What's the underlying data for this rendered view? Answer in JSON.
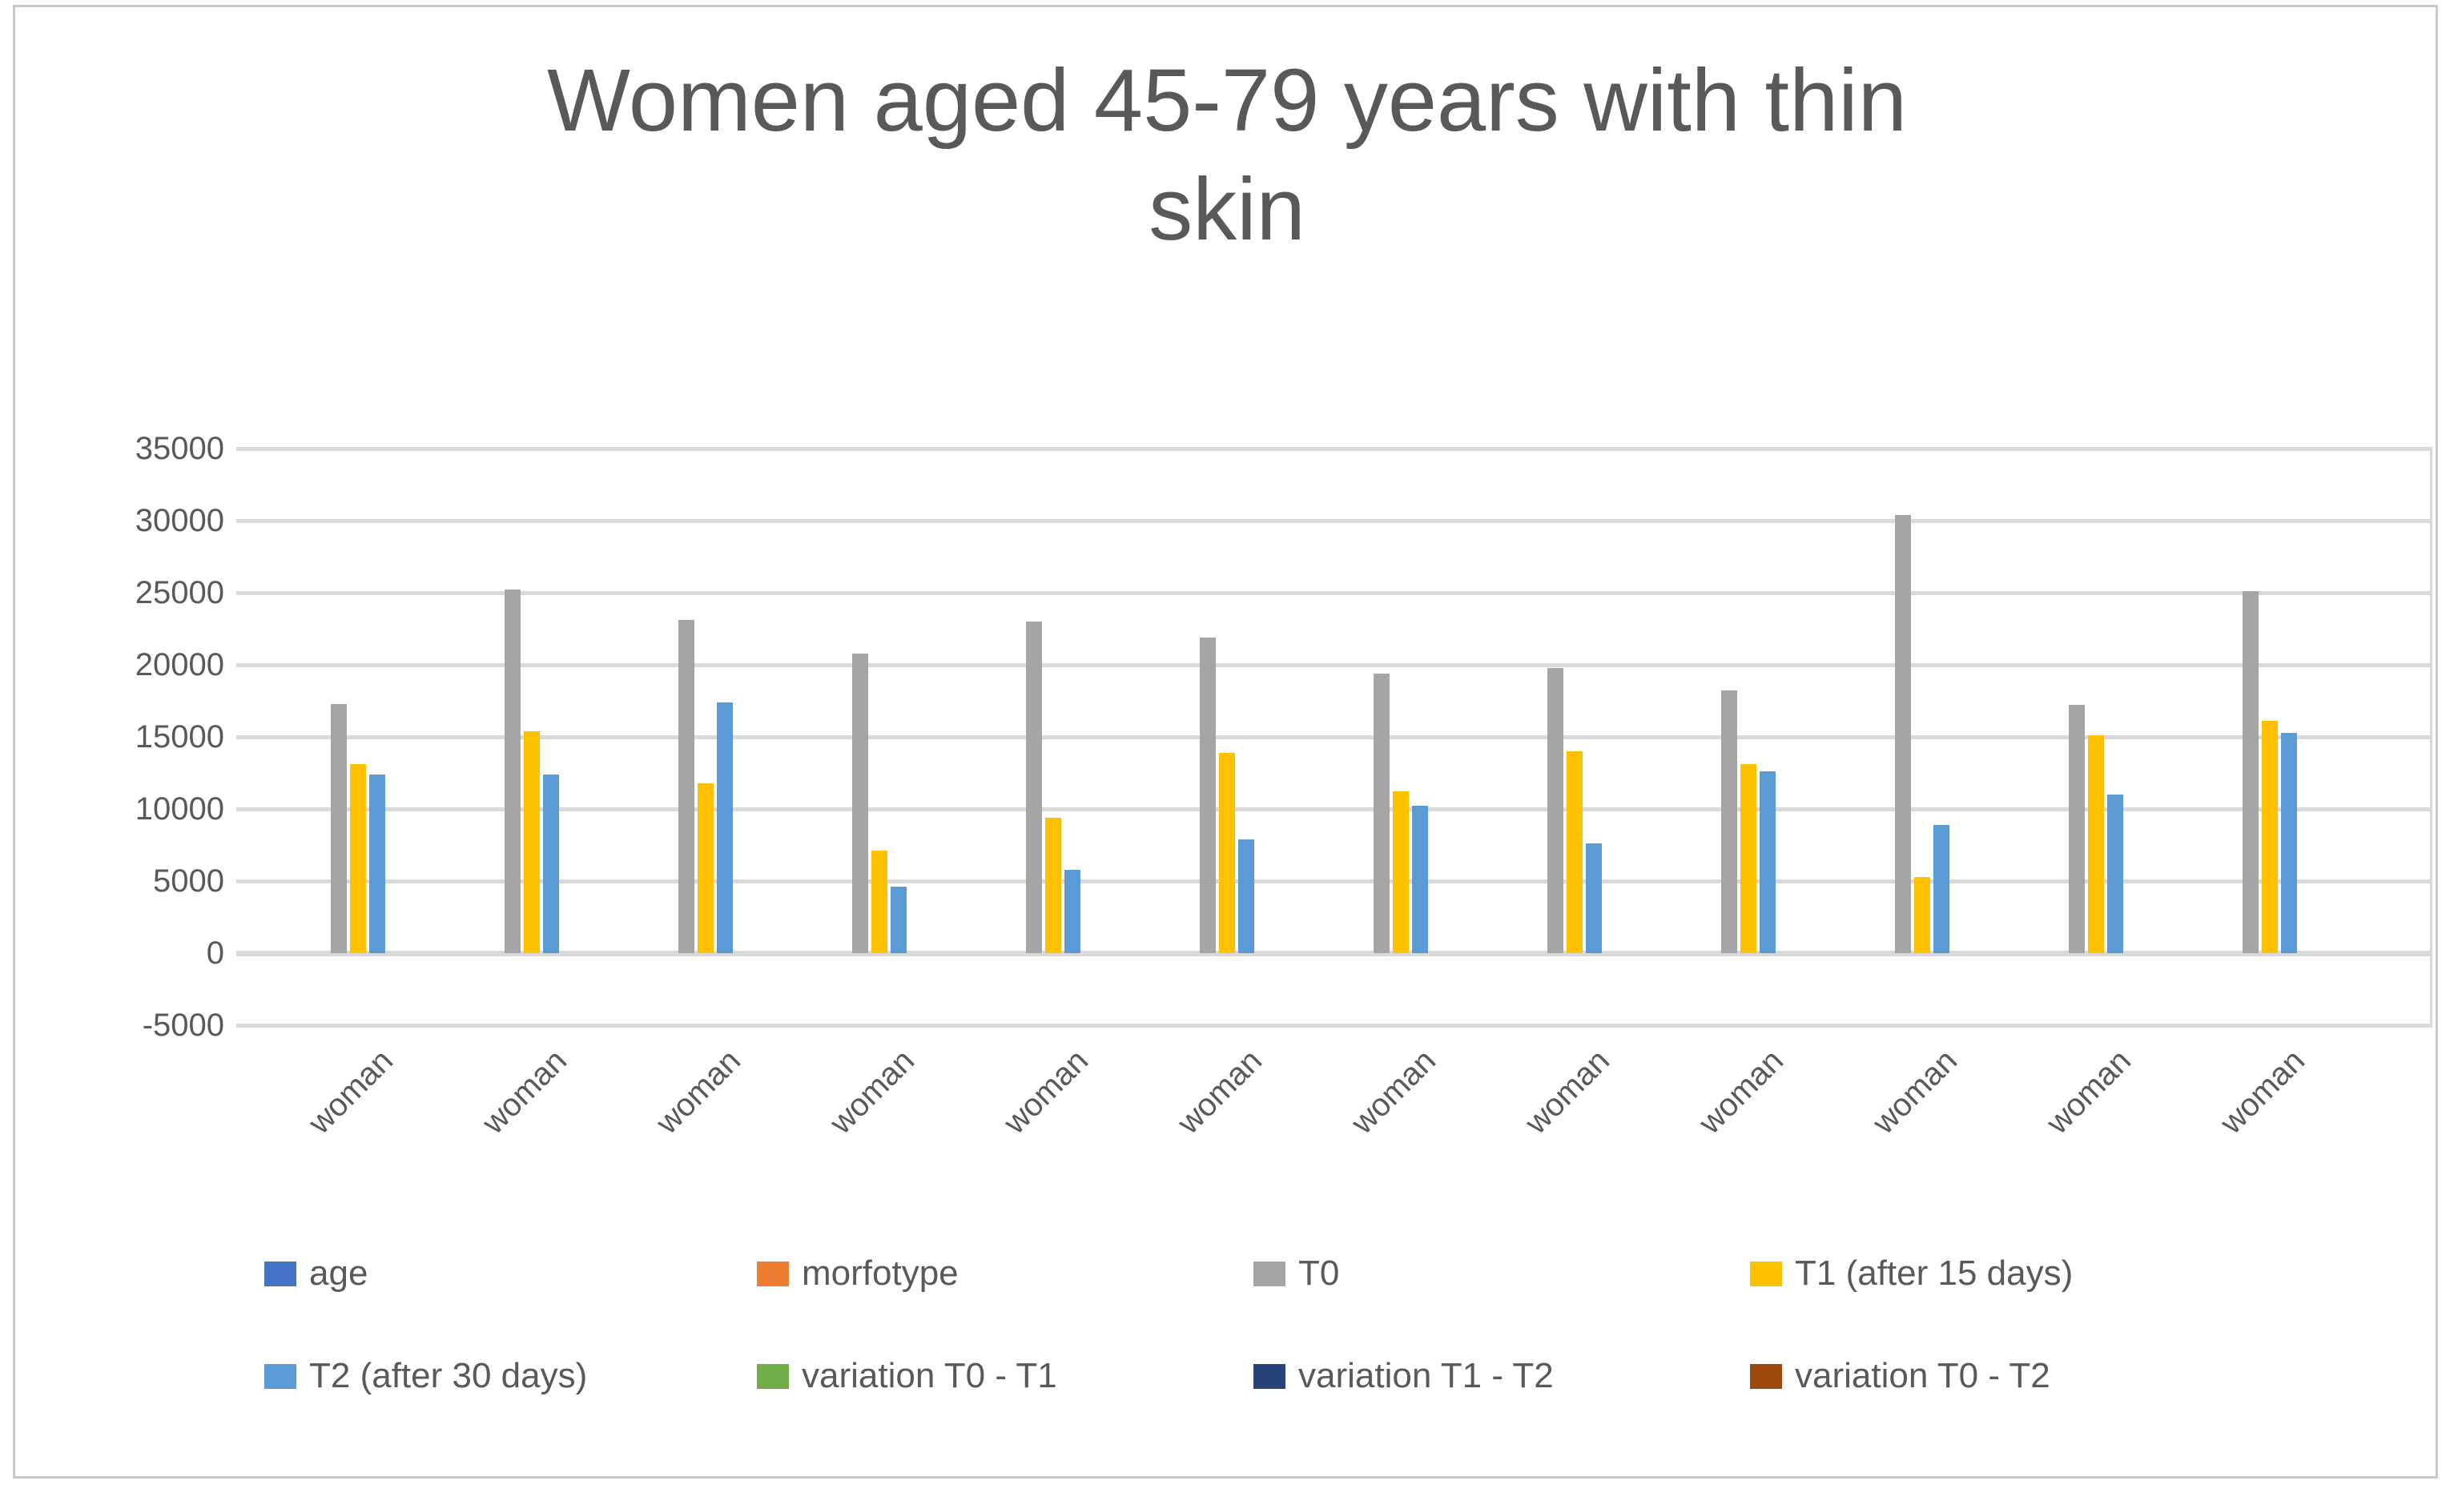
{
  "title": {
    "full": "Women aged 45-79 years with thin skin",
    "line1": "Women aged 45-79 years with thin",
    "line2": "skin"
  },
  "y_axis": {
    "tick_labels": [
      "35000",
      "30000",
      "25000",
      "20000",
      "15000",
      "10000",
      "5000",
      "0",
      "-5000"
    ],
    "max": 35000,
    "min": -5000,
    "step": 5000
  },
  "x_axis": {
    "labels": [
      "woman",
      "woman",
      "woman",
      "woman",
      "woman",
      "woman",
      "woman",
      "woman",
      "woman",
      "woman",
      "woman",
      "woman"
    ]
  },
  "legend": {
    "rows": [
      [
        {
          "label": "age",
          "color": "#4472C4"
        },
        {
          "label": "morfotype",
          "color": "#ED7D31"
        },
        {
          "label": "T0",
          "color": "#A5A5A5"
        },
        {
          "label": "T1 (after 15 days)",
          "color": "#FFC000"
        }
      ],
      [
        {
          "label": "T2 (after 30 days)",
          "color": "#5B9BD5"
        },
        {
          "label": "variation T0 - T1",
          "color": "#70AD47"
        },
        {
          "label": "variation T1 - T2",
          "color": "#264478"
        },
        {
          "label": "variation T0 - T2",
          "color": "#9E480E"
        }
      ]
    ]
  },
  "colors": {
    "text": "#595959",
    "gridline": "#D9D9D9",
    "frame_border": "#C9C9C9"
  },
  "chart_data": {
    "type": "bar",
    "title": "Women aged 45-79 years with thin skin",
    "categories": [
      "woman",
      "woman",
      "woman",
      "woman",
      "woman",
      "woman",
      "woman",
      "woman",
      "woman",
      "woman",
      "woman",
      "woman"
    ],
    "xlabel": "",
    "ylabel": "",
    "ylim": [
      -5000,
      35000
    ],
    "grid": true,
    "legend_position": "bottom",
    "series": [
      {
        "name": "T0",
        "color": "#A5A5A5",
        "values": [
          17300,
          25200,
          23100,
          20800,
          23000,
          21900,
          19400,
          19800,
          18200,
          30400,
          17200,
          25100
        ]
      },
      {
        "name": "T1 (after 15 days)",
        "color": "#FFC000",
        "values": [
          13100,
          15400,
          11800,
          7100,
          9400,
          13900,
          11200,
          14000,
          13100,
          5300,
          15100,
          16100
        ]
      },
      {
        "name": "T2 (after 30 days)",
        "color": "#5B9BD5",
        "values": [
          12400,
          12400,
          17400,
          4600,
          5800,
          7900,
          10200,
          7600,
          12600,
          8900,
          11000,
          15300
        ]
      }
    ],
    "legend_only_series": [
      {
        "name": "age",
        "color": "#4472C4"
      },
      {
        "name": "morfotype",
        "color": "#ED7D31"
      },
      {
        "name": "variation T0 - T1",
        "color": "#70AD47"
      },
      {
        "name": "variation T1 - T2",
        "color": "#264478"
      },
      {
        "name": "variation T0 - T2",
        "color": "#9E480E"
      }
    ]
  }
}
